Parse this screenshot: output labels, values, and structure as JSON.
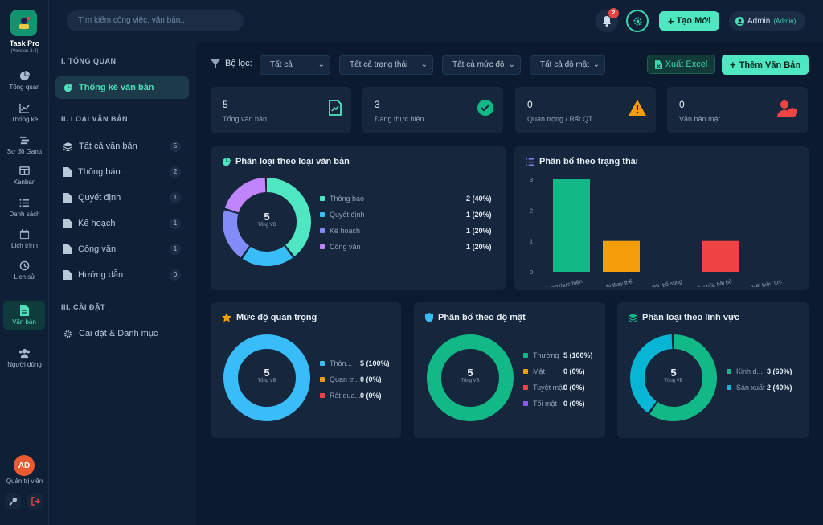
{
  "app": {
    "name": "Task Pro",
    "version": "(Version 2.4)"
  },
  "rail": {
    "items": [
      {
        "label": "Tổng quan",
        "icon": "pie-chart-icon"
      },
      {
        "label": "Thống kê",
        "icon": "line-chart-icon"
      },
      {
        "label": "Sơ đồ Gantt",
        "icon": "gantt-icon"
      },
      {
        "label": "Kanban",
        "icon": "kanban-icon"
      },
      {
        "label": "Danh sách",
        "icon": "list-icon"
      },
      {
        "label": "Lịch trình",
        "icon": "calendar-icon"
      },
      {
        "label": "Lịch sử",
        "icon": "history-icon"
      },
      {
        "label": "Văn bản",
        "icon": "document-icon"
      },
      {
        "label": "Người dùng",
        "icon": "users-icon"
      }
    ],
    "avatar": "AD",
    "role": "Quản trị viên"
  },
  "topbar": {
    "search_placeholder": "Tìm kiếm công việc, văn bản...",
    "notif_count": "2",
    "new_label": "Tạo Mới",
    "user_name": "Admin",
    "user_role": "(Admin)"
  },
  "sidebar": {
    "sec1": "I. TỔNG QUAN",
    "stats_item": "Thống kê văn bản",
    "sec2": "II. LOẠI VĂN BẢN",
    "types": [
      {
        "label": "Tất cả văn bản",
        "count": "5"
      },
      {
        "label": "Thông báo",
        "count": "2"
      },
      {
        "label": "Quyết định",
        "count": "1"
      },
      {
        "label": "Kế hoạch",
        "count": "1"
      },
      {
        "label": "Công văn",
        "count": "1"
      },
      {
        "label": "Hướng dẫn",
        "count": "0"
      }
    ],
    "sec3": "III. CÀI ĐẶT",
    "settings_item": "Cài đặt & Danh mục"
  },
  "filters": {
    "label": "Bộ lọc:",
    "type": "Tất cả",
    "status": "Tất cả trạng thái",
    "level": "Tất cả mức độ",
    "secrecy": "Tất cả độ mật"
  },
  "actions": {
    "export": "Xuất Excel",
    "add": "Thêm Văn Bản"
  },
  "stats": [
    {
      "value": "5",
      "label": "Tổng văn bản",
      "icon": "document-chart-icon"
    },
    {
      "value": "3",
      "label": "Đang thực hiện",
      "icon": "check-circle-icon"
    },
    {
      "value": "0",
      "label": "Quan trọng / Rất QT",
      "icon": "warning-icon"
    },
    {
      "value": "0",
      "label": "Văn bản mật",
      "icon": "user-shield-icon"
    }
  ],
  "colors": {
    "accent": "#4ee7c2",
    "teal": "#4ee7c2",
    "sky": "#38bdf8",
    "indigo": "#818cf8",
    "violet": "#c084fc",
    "green": "#12b886",
    "orange": "#f59e0b",
    "red": "#ef4444",
    "purple": "#8b5cf6",
    "cyan": "#06b6d4"
  },
  "chart_data": [
    {
      "type": "pie",
      "title": "Phân loại theo loại văn bản",
      "center_value": "5",
      "center_label": "Tổng VB",
      "categories": [
        "Thông báo",
        "Quyết định",
        "Kế hoạch",
        "Công văn"
      ],
      "values": [
        2,
        1,
        1,
        1
      ],
      "value_labels": [
        "2 (40%)",
        "1 (20%)",
        "1 (20%)",
        "1 (20%)"
      ],
      "colors": [
        "#4ee7c2",
        "#38bdf8",
        "#818cf8",
        "#c084fc"
      ]
    },
    {
      "type": "bar",
      "title": "Phân bổ theo trạng thái",
      "categories": [
        "Đang thực hiện",
        "Bị thay thế",
        "Bị sửa đổi, bổ sung",
        "Bị thu hồi, bãi bỏ",
        "Hết hiệu lực"
      ],
      "values": [
        3,
        1,
        0,
        1,
        0
      ],
      "colors": [
        "#12b886",
        "#f59e0b",
        "#f59e0b",
        "#ef4444",
        "#ef4444"
      ],
      "ylim": [
        0,
        3
      ],
      "yticks": [
        "0",
        "1",
        "2",
        "3"
      ]
    },
    {
      "type": "pie",
      "title": "Mức độ quan trọng",
      "center_value": "5",
      "center_label": "Tổng VB",
      "categories": [
        "Thôn...",
        "Quan tr...",
        "Rất qua..."
      ],
      "values": [
        5,
        0,
        0
      ],
      "value_labels": [
        "5 (100%)",
        "0 (0%)",
        "0 (0%)"
      ],
      "colors": [
        "#38bdf8",
        "#f59e0b",
        "#ef4444"
      ]
    },
    {
      "type": "pie",
      "title": "Phân bố theo độ mật",
      "center_value": "5",
      "center_label": "Tổng VB",
      "categories": [
        "Thường",
        "Mật",
        "Tuyệt mật",
        "Tối mật"
      ],
      "values": [
        5,
        0,
        0,
        0
      ],
      "value_labels": [
        "5 (100%)",
        "0 (0%)",
        "0 (0%)",
        "0 (0%)"
      ],
      "colors": [
        "#12b886",
        "#f59e0b",
        "#ef4444",
        "#8b5cf6"
      ]
    },
    {
      "type": "pie",
      "title": "Phân loại theo lĩnh vực",
      "center_value": "5",
      "center_label": "Tổng VB",
      "categories": [
        "Kinh d...",
        "Sản xuất"
      ],
      "values": [
        3,
        2
      ],
      "value_labels": [
        "3 (60%)",
        "2 (40%)"
      ],
      "colors": [
        "#12b886",
        "#06b6d4"
      ]
    }
  ]
}
